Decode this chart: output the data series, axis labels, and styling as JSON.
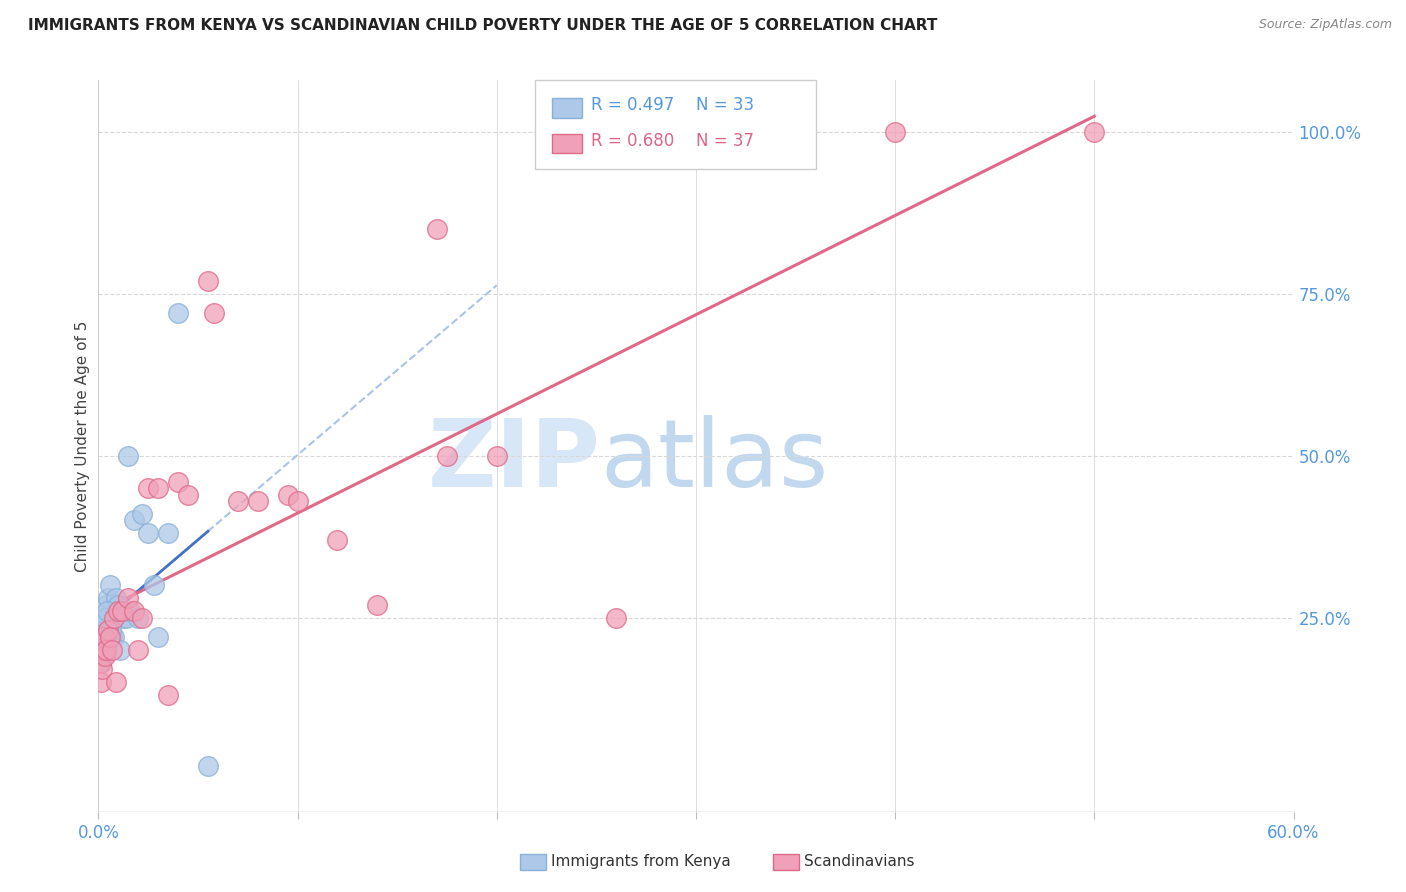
{
  "title": "IMMIGRANTS FROM KENYA VS SCANDINAVIAN CHILD POVERTY UNDER THE AGE OF 5 CORRELATION CHART",
  "source": "Source: ZipAtlas.com",
  "ylabel": "Child Poverty Under the Age of 5",
  "x_tick_labels": [
    "0.0%",
    "",
    "",
    "",
    "",
    "",
    "60.0%"
  ],
  "x_tick_values": [
    0.0,
    10.0,
    20.0,
    30.0,
    40.0,
    50.0,
    60.0
  ],
  "y_tick_labels": [
    "100.0%",
    "75.0%",
    "50.0%",
    "25.0%"
  ],
  "y_tick_values": [
    100.0,
    75.0,
    50.0,
    25.0
  ],
  "xlim": [
    0.0,
    60.0
  ],
  "ylim": [
    -5.0,
    108.0
  ],
  "legend_r1": "R = 0.497",
  "legend_n1": "N = 33",
  "legend_r2": "R = 0.680",
  "legend_n2": "N = 37",
  "legend_label1": "Immigrants from Kenya",
  "legend_label2": "Scandinavians",
  "watermark_zip": "ZIP",
  "watermark_atlas": "atlas",
  "blue_color": "#adc8e8",
  "pink_color": "#f0a0b8",
  "blue_edge": "#88b0d8",
  "pink_edge": "#e06888",
  "trendline_blue_color": "#4472c4",
  "trendline_blue_dash_color": "#aac4e8",
  "trendline_pink_color": "#e06888",
  "background_color": "#ffffff",
  "grid_color": "#d8d8d8",
  "kenya_x": [
    0.1,
    0.15,
    0.2,
    0.25,
    0.3,
    0.35,
    0.4,
    0.5,
    0.6,
    0.7,
    0.8,
    0.9,
    1.0,
    1.1,
    1.2,
    1.4,
    1.6,
    1.8,
    2.0,
    2.2,
    2.5,
    2.8,
    3.0,
    3.5,
    4.0,
    0.15,
    0.25,
    0.35,
    0.45,
    0.55,
    0.65,
    1.5,
    5.5
  ],
  "kenya_y": [
    18.0,
    20.0,
    22.0,
    19.0,
    25.0,
    22.0,
    27.0,
    28.0,
    30.0,
    22.0,
    22.0,
    28.0,
    27.0,
    20.0,
    25.0,
    25.0,
    26.0,
    40.0,
    25.0,
    41.0,
    38.0,
    30.0,
    22.0,
    38.0,
    72.0,
    18.0,
    23.0,
    25.0,
    26.0,
    22.0,
    23.0,
    50.0,
    2.0
  ],
  "scandi_x": [
    0.1,
    0.15,
    0.2,
    0.25,
    0.3,
    0.35,
    0.4,
    0.5,
    0.6,
    0.7,
    0.8,
    0.9,
    1.0,
    1.2,
    1.5,
    1.8,
    2.0,
    2.2,
    2.5,
    3.0,
    3.5,
    4.0,
    4.5,
    5.5,
    5.8,
    7.0,
    8.0,
    9.5,
    10.0,
    12.0,
    14.0,
    17.5,
    20.0,
    26.0,
    40.0,
    50.0,
    17.0
  ],
  "scandi_y": [
    18.0,
    15.0,
    17.0,
    20.0,
    22.0,
    19.0,
    20.0,
    23.0,
    22.0,
    20.0,
    25.0,
    15.0,
    26.0,
    26.0,
    28.0,
    26.0,
    20.0,
    25.0,
    45.0,
    45.0,
    13.0,
    46.0,
    44.0,
    77.0,
    72.0,
    43.0,
    43.0,
    44.0,
    43.0,
    37.0,
    27.0,
    50.0,
    50.0,
    25.0,
    100.0,
    100.0,
    85.0
  ]
}
